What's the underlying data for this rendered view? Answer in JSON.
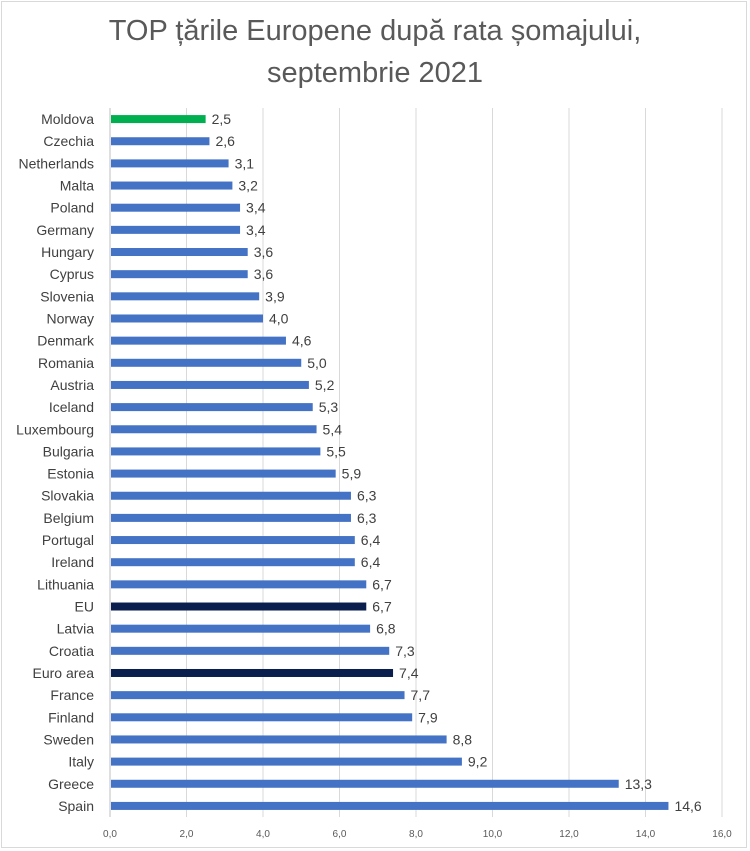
{
  "chart_data": {
    "type": "bar",
    "orientation": "horizontal",
    "title_line1": "TOP țările Europene după rata șomajului,",
    "title_line2": "septembrie 2021",
    "categories": [
      "Moldova",
      "Czechia",
      "Netherlands",
      "Malta",
      "Poland",
      "Germany",
      "Hungary",
      "Cyprus",
      "Slovenia",
      "Norway",
      "Denmark",
      "Romania",
      "Austria",
      "Iceland",
      "Luxembourg",
      "Bulgaria",
      "Estonia",
      "Slovakia",
      "Belgium",
      "Portugal",
      "Ireland",
      "Lithuania",
      "EU",
      "Latvia",
      "Croatia",
      "Euro area",
      "France",
      "Finland",
      "Sweden",
      "Italy",
      "Greece",
      "Spain"
    ],
    "values": [
      2.5,
      2.6,
      3.1,
      3.2,
      3.4,
      3.4,
      3.6,
      3.6,
      3.9,
      4.0,
      4.6,
      5.0,
      5.2,
      5.3,
      5.4,
      5.5,
      5.9,
      6.3,
      6.3,
      6.4,
      6.4,
      6.7,
      6.7,
      6.8,
      7.3,
      7.4,
      7.7,
      7.9,
      8.8,
      9.2,
      13.3,
      14.6
    ],
    "value_labels": [
      "2,5",
      "2,6",
      "3,1",
      "3,2",
      "3,4",
      "3,4",
      "3,6",
      "3,6",
      "3,9",
      "4,0",
      "4,6",
      "5,0",
      "5,2",
      "5,3",
      "5,4",
      "5,5",
      "5,9",
      "6,3",
      "6,3",
      "6,4",
      "6,4",
      "6,7",
      "6,7",
      "6,8",
      "7,3",
      "7,4",
      "7,7",
      "7,9",
      "8,8",
      "9,2",
      "13,3",
      "14,6"
    ],
    "xlim": [
      0,
      16
    ],
    "xticks": [
      "0,0",
      "2,0",
      "4,0",
      "6,0",
      "8,0",
      "10,0",
      "12,0",
      "14,0",
      "16,0"
    ],
    "grid": "vertical",
    "colors": {
      "default": "#4472c4",
      "Moldova": "#00b050",
      "EU": "#0a1f4e",
      "Euro area": "#0a1f4e",
      "grid": "#d9d9d9",
      "axis": "#bfbfbf"
    }
  }
}
